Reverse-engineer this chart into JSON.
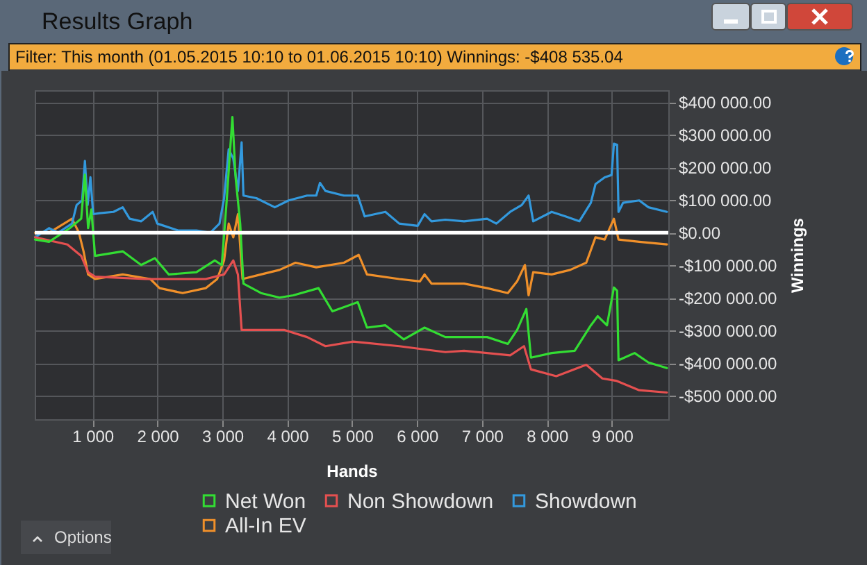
{
  "chart_data": {
    "type": "line",
    "title": "Results Graph",
    "subtitle": "Filter: This month (01.05.2015 10:10 to 01.06.2015 10:10) Winnings: -$408 535.04",
    "xlabel": "Hands",
    "ylabel": "Winnings",
    "annotations": [
      "Options"
    ],
    "xlim": [
      110,
      9870
    ],
    "ylim": [
      -572000,
      437000
    ],
    "xticks": [
      {
        "value": 1000,
        "label": "1 000"
      },
      {
        "value": 2000,
        "label": "2 000"
      },
      {
        "value": 3000,
        "label": "3 000"
      },
      {
        "value": 4000,
        "label": "4 000"
      },
      {
        "value": 5000,
        "label": "5 000"
      },
      {
        "value": 6000,
        "label": "6 000"
      },
      {
        "value": 7000,
        "label": "7 000"
      },
      {
        "value": 8000,
        "label": "8 000"
      },
      {
        "value": 9000,
        "label": "9 000"
      }
    ],
    "yticks": [
      {
        "value": 400000,
        "label": "$400 000.00"
      },
      {
        "value": 300000,
        "label": "$300 000.00"
      },
      {
        "value": 200000,
        "label": "$200 000.00"
      },
      {
        "value": 100000,
        "label": "$100 000.00"
      },
      {
        "value": 0,
        "label": "$0.00"
      },
      {
        "value": -100000,
        "label": "-$100 000.00"
      },
      {
        "value": -200000,
        "label": "-$200 000.00"
      },
      {
        "value": -300000,
        "label": "-$300 000.00"
      },
      {
        "value": -400000,
        "label": "-$400 000.00"
      },
      {
        "value": -500000,
        "label": "-$500 000.00"
      }
    ],
    "grid": true,
    "legend": "bottom",
    "ref_lines": [
      {
        "axis": "y",
        "value": 0,
        "color": "#ffffff"
      }
    ],
    "series": [
      {
        "name": "Net Won",
        "color": "#33dd33",
        "x": [
          116,
          330,
          649,
          826,
          883,
          932,
          982,
          1039,
          1465,
          1749,
          1962,
          2175,
          2601,
          2885,
          2991,
          3062,
          3155,
          3204,
          3275,
          3325,
          3595,
          3879,
          4092,
          4482,
          4695,
          5086,
          5228,
          5512,
          5796,
          6115,
          6435,
          6724,
          7079,
          7398,
          7541,
          7683,
          7754,
          8073,
          8428,
          8677,
          8783,
          8925,
          9032,
          9081,
          9103,
          9351,
          9564,
          9848
        ],
        "values": [
          -21000,
          -28000,
          14000,
          43000,
          178000,
          14000,
          71000,
          -71000,
          -57000,
          -99000,
          -78000,
          -128000,
          -121000,
          -85000,
          -99000,
          85000,
          355000,
          170000,
          28000,
          -156000,
          -185000,
          -199000,
          -192000,
          -170000,
          -241000,
          -213000,
          -291000,
          -284000,
          -327000,
          -291000,
          -320000,
          -320000,
          -320000,
          -341000,
          -298000,
          -234000,
          -383000,
          -369000,
          -362000,
          -284000,
          -256000,
          -284000,
          -168000,
          -178000,
          -391000,
          -369000,
          -398000,
          -415000
        ]
      },
      {
        "name": "Non Showdown",
        "color": "#e55050",
        "x": [
          116,
          613,
          826,
          932,
          1039,
          1820,
          2743,
          3027,
          3169,
          3240,
          3297,
          3950,
          4305,
          4589,
          5015,
          5725,
          6435,
          6724,
          7434,
          7647,
          7754,
          8144,
          8606,
          8854,
          9067,
          9422,
          9848
        ],
        "values": [
          -14000,
          -36000,
          -71000,
          -121000,
          -135000,
          -142000,
          -142000,
          -128000,
          -85000,
          -128000,
          -298000,
          -298000,
          -320000,
          -348000,
          -334000,
          -348000,
          -366000,
          -362000,
          -376000,
          -348000,
          -419000,
          -440000,
          -405000,
          -447000,
          -454000,
          -483000,
          -490000
        ]
      },
      {
        "name": "Showdown",
        "color": "#3399dd",
        "x": [
          116,
          330,
          470,
          684,
          755,
          840,
          883,
          925,
          968,
          1010,
          1110,
          1323,
          1465,
          1572,
          1750,
          1927,
          1998,
          2317,
          2601,
          2814,
          2956,
          3027,
          3098,
          3169,
          3240,
          3297,
          3325,
          3524,
          3808,
          4021,
          4305,
          4447,
          4504,
          4589,
          4873,
          5086,
          5192,
          5512,
          5725,
          6009,
          6115,
          6222,
          6435,
          6724,
          7079,
          7221,
          7434,
          7612,
          7718,
          7789,
          8073,
          8286,
          8499,
          8677,
          8748,
          8890,
          8996,
          9032,
          9081,
          9103,
          9174,
          9422,
          9564,
          9848
        ],
        "values": [
          -14000,
          14000,
          0,
          28000,
          85000,
          99000,
          220000,
          85000,
          170000,
          57000,
          60000,
          64000,
          78000,
          43000,
          35000,
          64000,
          28000,
          7000,
          7000,
          0,
          28000,
          106000,
          256000,
          227000,
          128000,
          277000,
          114000,
          106000,
          78000,
          99000,
          114000,
          114000,
          153000,
          128000,
          114000,
          114000,
          50000,
          64000,
          28000,
          21000,
          57000,
          35000,
          40000,
          35000,
          43000,
          28000,
          64000,
          85000,
          114000,
          35000,
          64000,
          50000,
          35000,
          92000,
          149000,
          170000,
          177000,
          273000,
          270000,
          64000,
          92000,
          99000,
          78000,
          64000
        ]
      },
      {
        "name": "All-In EV",
        "color": "#f0902a",
        "x": [
          116,
          330,
          684,
          791,
          862,
          932,
          1039,
          1465,
          1891,
          2033,
          2388,
          2743,
          2920,
          3027,
          3098,
          3169,
          3240,
          3311,
          3595,
          3879,
          4127,
          4447,
          4873,
          5100,
          5228,
          5725,
          6044,
          6115,
          6222,
          6435,
          6724,
          7079,
          7398,
          7541,
          7661,
          7718,
          7789,
          8073,
          8357,
          8606,
          8748,
          8890,
          9032,
          9103,
          9422,
          9848
        ],
        "values": [
          0,
          0,
          43000,
          0,
          -57000,
          -128000,
          -142000,
          -128000,
          -142000,
          -170000,
          -185000,
          -170000,
          -142000,
          -85000,
          28000,
          -14000,
          57000,
          -142000,
          -128000,
          -114000,
          -92000,
          -106000,
          -92000,
          -68000,
          -128000,
          -142000,
          -149000,
          -128000,
          -156000,
          -156000,
          -156000,
          -170000,
          -185000,
          -149000,
          -99000,
          -192000,
          -121000,
          -128000,
          -114000,
          -92000,
          -14000,
          -21000,
          43000,
          -21000,
          -28000,
          -36000
        ]
      }
    ]
  }
}
